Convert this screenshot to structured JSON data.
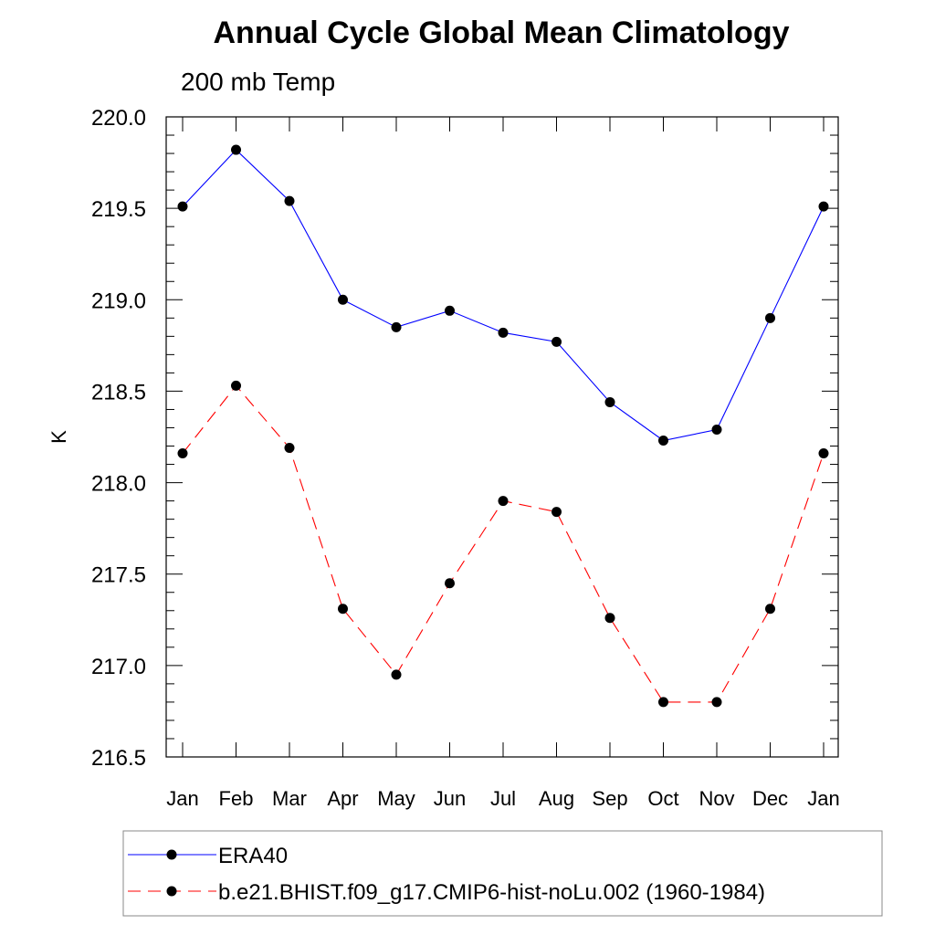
{
  "chart_data": {
    "type": "line",
    "title": "Annual Cycle Global Mean Climatology",
    "subtitle": "200 mb Temp",
    "ylabel": "K",
    "xlabel": "",
    "categories": [
      "Jan",
      "Feb",
      "Mar",
      "Apr",
      "May",
      "Jun",
      "Jul",
      "Aug",
      "Sep",
      "Oct",
      "Nov",
      "Dec",
      "Jan"
    ],
    "ylim": [
      216.5,
      220.0
    ],
    "yticks": [
      "220.0",
      "219.5",
      "219.0",
      "218.5",
      "218.0",
      "217.5",
      "217.0",
      "216.5"
    ],
    "ytick_values": [
      220.0,
      219.5,
      219.0,
      218.5,
      218.0,
      217.5,
      217.0,
      216.5
    ],
    "grid": false,
    "legend_position": "bottom",
    "series": [
      {
        "name": "ERA40",
        "color": "#0000ff",
        "dash": "solid",
        "marker": "circle",
        "values": [
          219.51,
          219.82,
          219.54,
          219.0,
          218.85,
          218.94,
          218.82,
          218.77,
          218.44,
          218.23,
          218.29,
          218.9,
          219.51
        ]
      },
      {
        "name": "b.e21.BHIST.f09_g17.CMIP6-hist-noLu.002 (1960-1984)",
        "color": "#ff0000",
        "dash": "dashed",
        "marker": "circle",
        "values": [
          218.16,
          218.53,
          218.19,
          217.31,
          216.95,
          217.45,
          217.9,
          217.84,
          217.26,
          216.8,
          216.8,
          217.31,
          218.16
        ]
      }
    ]
  }
}
